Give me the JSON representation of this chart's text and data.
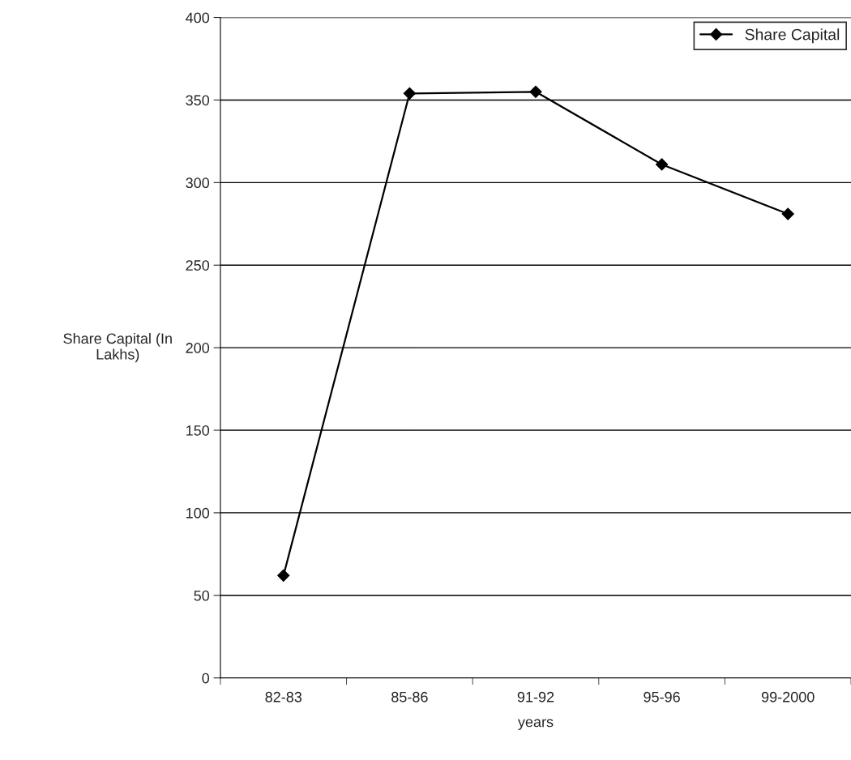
{
  "chart_data": {
    "type": "line",
    "xlabel": "years",
    "ylabel": "Share Capital (In\nLakhs)",
    "categories": [
      "82-83",
      "85-86",
      "91-92",
      "95-96",
      "99-2000"
    ],
    "series": [
      {
        "name": "Share Capital",
        "color": "#000000",
        "values": [
          62,
          354,
          355,
          311,
          281
        ]
      }
    ],
    "ylim": [
      0,
      400
    ],
    "yticks": [
      0,
      50,
      100,
      150,
      200,
      250,
      300,
      350,
      400
    ],
    "grid": "y",
    "legend": "top right",
    "marker": "diamond",
    "line_style": "solid"
  }
}
